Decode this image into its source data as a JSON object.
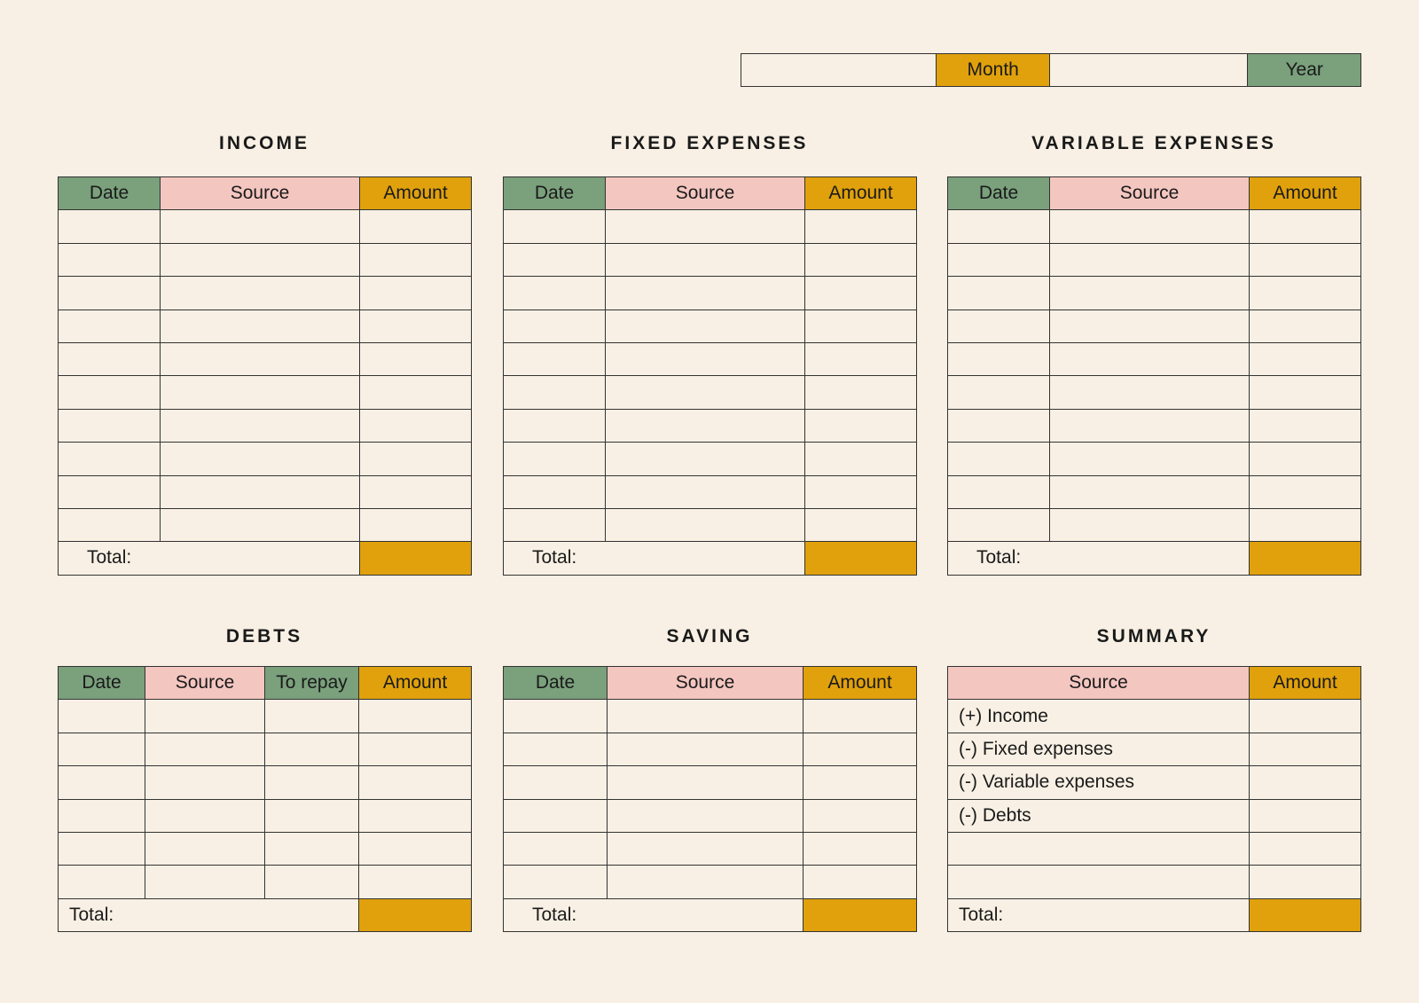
{
  "period": {
    "month_label": "Month",
    "year_label": "Year",
    "month_value": "",
    "year_value": ""
  },
  "colors": {
    "background": "#f8f0e4",
    "green": "#7aa07c",
    "pink": "#f4c6c0",
    "amber": "#e0a10c"
  },
  "tables": {
    "income": {
      "title": "INCOME",
      "headers": [
        "Date",
        "Source",
        "Amount"
      ],
      "total_label": "Total:"
    },
    "fixed": {
      "title": "FIXED EXPENSES",
      "headers": [
        "Date",
        "Source",
        "Amount"
      ],
      "total_label": "Total:"
    },
    "variable": {
      "title": "VARIABLE EXPENSES",
      "headers": [
        "Date",
        "Source",
        "Amount"
      ],
      "total_label": "Total:"
    },
    "debts": {
      "title": "DEBTS",
      "headers": [
        "Date",
        "Source",
        "To repay",
        "Amount"
      ],
      "total_label": "Total:"
    },
    "saving": {
      "title": "SAVING",
      "headers": [
        "Date",
        "Source",
        "Amount"
      ],
      "total_label": "Total:"
    },
    "summary": {
      "title": "SUMMARY",
      "headers": [
        "Source",
        "Amount"
      ],
      "rows": [
        "(+) Income",
        "(-) Fixed expenses",
        "(-) Variable expenses",
        "(-) Debts",
        "",
        ""
      ],
      "total_label": "Total:"
    }
  }
}
